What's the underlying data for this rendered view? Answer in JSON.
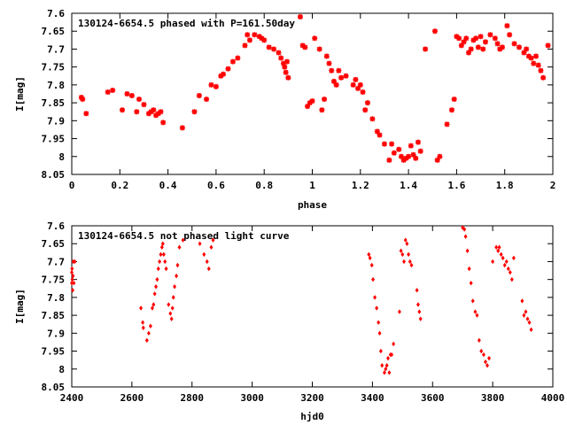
{
  "chart_data": [
    {
      "type": "scatter",
      "title": "130124-6654.5 phased with P=161.50day",
      "xlabel": "phase",
      "ylabel": "I[mag]",
      "xlim": [
        0,
        2
      ],
      "ylim": [
        8.05,
        7.6
      ],
      "y_inverted": true,
      "xticks": [
        0,
        0.2,
        0.4,
        0.6,
        0.8,
        1,
        1.2,
        1.4,
        1.6,
        1.8,
        2
      ],
      "xtick_labels": [
        "0",
        "0.2",
        "0.4",
        "0.6",
        "0.8",
        "1",
        "1.2",
        "1.4",
        "1.6",
        "1.8",
        "2"
      ],
      "yticks": [
        7.6,
        7.65,
        7.7,
        7.75,
        7.8,
        7.85,
        7.9,
        7.95,
        8,
        8.05
      ],
      "ytick_labels": [
        "7.6",
        "7.65",
        "7.7",
        "7.75",
        "7.8",
        "7.85",
        "7.9",
        "7.95",
        "8",
        "8.05"
      ],
      "grid": false,
      "marker_color": "#ff0000",
      "series": [
        {
          "x": [
            0.04,
            0.045,
            0.06,
            0.15,
            0.17,
            0.21,
            0.23,
            0.25,
            0.27,
            0.28,
            0.3,
            0.32,
            0.33,
            0.34,
            0.35,
            0.36,
            0.37,
            0.38,
            0.46,
            0.51,
            0.53,
            0.56,
            0.58,
            0.6,
            0.62,
            0.63,
            0.65,
            0.67,
            0.69,
            0.72,
            0.73,
            0.74,
            0.76,
            0.78,
            0.79,
            0.8,
            0.82,
            0.84,
            0.86,
            0.87,
            0.88,
            0.885,
            0.89,
            0.895,
            0.9,
            0.95,
            0.96,
            0.97,
            0.98,
            0.99,
            1.0,
            1.01,
            1.03,
            1.04,
            1.05,
            1.06,
            1.07,
            1.08,
            1.09,
            1.1,
            1.11,
            1.12,
            1.14,
            1.17,
            1.18,
            1.19,
            1.2,
            1.21,
            1.22,
            1.23,
            1.25,
            1.27,
            1.28,
            1.3,
            1.32,
            1.33,
            1.34,
            1.36,
            1.37,
            1.38,
            1.39,
            1.4,
            1.41,
            1.42,
            1.43,
            1.44,
            1.45,
            1.47,
            1.51,
            1.52,
            1.53,
            1.56,
            1.58,
            1.59,
            1.6,
            1.61,
            1.62,
            1.63,
            1.64,
            1.65,
            1.66,
            1.67,
            1.68,
            1.69,
            1.7,
            1.71,
            1.72,
            1.74,
            1.76,
            1.77,
            1.78,
            1.79,
            1.81,
            1.82,
            1.84,
            1.86,
            1.88,
            1.89,
            1.9,
            1.91,
            1.92,
            1.93,
            1.94,
            1.95,
            1.96,
            1.98
          ],
          "y": [
            7.835,
            7.84,
            7.88,
            7.82,
            7.815,
            7.87,
            7.825,
            7.83,
            7.875,
            7.84,
            7.855,
            7.88,
            7.875,
            7.87,
            7.885,
            7.88,
            7.875,
            7.905,
            7.92,
            7.875,
            7.83,
            7.84,
            7.8,
            7.805,
            7.775,
            7.77,
            7.755,
            7.735,
            7.725,
            7.69,
            7.66,
            7.675,
            7.66,
            7.665,
            7.67,
            7.675,
            7.695,
            7.7,
            7.71,
            7.725,
            7.74,
            7.75,
            7.765,
            7.735,
            7.78,
            7.61,
            7.69,
            7.695,
            7.86,
            7.85,
            7.845,
            7.67,
            7.7,
            7.87,
            7.84,
            7.72,
            7.74,
            7.76,
            7.79,
            7.8,
            7.76,
            7.78,
            7.775,
            7.8,
            7.785,
            7.81,
            7.8,
            7.82,
            7.87,
            7.85,
            7.895,
            7.93,
            7.94,
            7.965,
            8.01,
            7.965,
            7.99,
            7.98,
            8.0,
            8.01,
            8.005,
            8.0,
            7.97,
            7.995,
            8.005,
            7.96,
            7.985,
            7.7,
            7.65,
            8.01,
            8.0,
            7.91,
            7.87,
            7.84,
            7.665,
            7.67,
            7.69,
            7.68,
            7.67,
            7.71,
            7.7,
            7.675,
            7.67,
            7.695,
            7.665,
            7.7,
            7.68,
            7.66,
            7.67,
            7.685,
            7.7,
            7.695,
            7.635,
            7.66,
            7.685,
            7.695,
            7.71,
            7.7,
            7.72,
            7.725,
            7.74,
            7.72,
            7.745,
            7.76,
            7.78,
            7.69
          ]
        }
      ]
    },
    {
      "type": "scatter",
      "title": "130124-6654.5 not phased light curve",
      "xlabel": "hjd0",
      "ylabel": "I[mag]",
      "xlim": [
        2400,
        4000
      ],
      "ylim": [
        8.05,
        7.6
      ],
      "y_inverted": true,
      "xticks": [
        2400,
        2600,
        2800,
        3000,
        3200,
        3400,
        3600,
        3800,
        4000
      ],
      "xtick_labels": [
        "2400",
        "2600",
        "2800",
        "3000",
        "3200",
        "3400",
        "3600",
        "3800",
        "4000"
      ],
      "yticks": [
        7.6,
        7.65,
        7.7,
        7.75,
        7.8,
        7.85,
        7.9,
        7.95,
        8,
        8.05
      ],
      "ytick_labels": [
        "7.6",
        "7.65",
        "7.7",
        "7.75",
        "7.8",
        "7.85",
        "7.9",
        "7.95",
        "8",
        "8.05"
      ],
      "grid": false,
      "marker_color": "#ff0000",
      "series": [
        {
          "x": [
            2400,
            2400,
            2401,
            2402,
            2403,
            2404,
            2405,
            2407,
            2410,
            2630,
            2636,
            2638,
            2650,
            2656,
            2662,
            2668,
            2672,
            2676,
            2680,
            2684,
            2688,
            2692,
            2696,
            2700,
            2703,
            2706,
            2710,
            2714,
            2722,
            2728,
            2732,
            2735,
            2738,
            2742,
            2748,
            2752,
            2758,
            2770,
            2826,
            2840,
            2850,
            2856,
            2864,
            2870,
            3388,
            3392,
            3398,
            3402,
            3408,
            3414,
            3420,
            3424,
            3428,
            3432,
            3440,
            3444,
            3448,
            3452,
            3456,
            3460,
            3464,
            3470,
            3490,
            3495,
            3500,
            3505,
            3510,
            3515,
            3520,
            3525,
            3530,
            3548,
            3552,
            3556,
            3560,
            3700,
            3706,
            3710,
            3716,
            3722,
            3728,
            3734,
            3742,
            3748,
            3755,
            3762,
            3770,
            3776,
            3782,
            3788,
            3800,
            3812,
            3818,
            3822,
            3828,
            3834,
            3840,
            3846,
            3852,
            3858,
            3864,
            3870,
            3898,
            3904,
            3910,
            3916,
            3922,
            3928
          ],
          "y": [
            7.73,
            7.76,
            7.72,
            7.75,
            7.78,
            7.74,
            7.7,
            7.76,
            7.7,
            7.83,
            7.87,
            7.885,
            7.92,
            7.9,
            7.88,
            7.83,
            7.82,
            7.79,
            7.77,
            7.75,
            7.72,
            7.7,
            7.68,
            7.66,
            7.65,
            7.68,
            7.7,
            7.72,
            7.82,
            7.845,
            7.86,
            7.83,
            7.8,
            7.77,
            7.74,
            7.71,
            7.66,
            7.64,
            7.65,
            7.68,
            7.7,
            7.72,
            7.66,
            7.64,
            7.68,
            7.69,
            7.71,
            7.75,
            7.8,
            7.83,
            7.87,
            7.9,
            7.95,
            7.99,
            8.01,
            8.0,
            7.99,
            7.97,
            8.01,
            7.96,
            7.96,
            7.93,
            7.84,
            7.67,
            7.68,
            7.7,
            7.64,
            7.65,
            7.68,
            7.7,
            7.71,
            7.78,
            7.82,
            7.84,
            7.86,
            7.605,
            7.61,
            7.63,
            7.67,
            7.72,
            7.76,
            7.81,
            7.84,
            7.85,
            7.92,
            7.95,
            7.96,
            7.98,
            7.99,
            7.97,
            7.7,
            7.66,
            7.67,
            7.66,
            7.68,
            7.69,
            7.71,
            7.7,
            7.72,
            7.73,
            7.75,
            7.69,
            7.81,
            7.85,
            7.84,
            7.86,
            7.87,
            7.89
          ]
        }
      ]
    }
  ]
}
